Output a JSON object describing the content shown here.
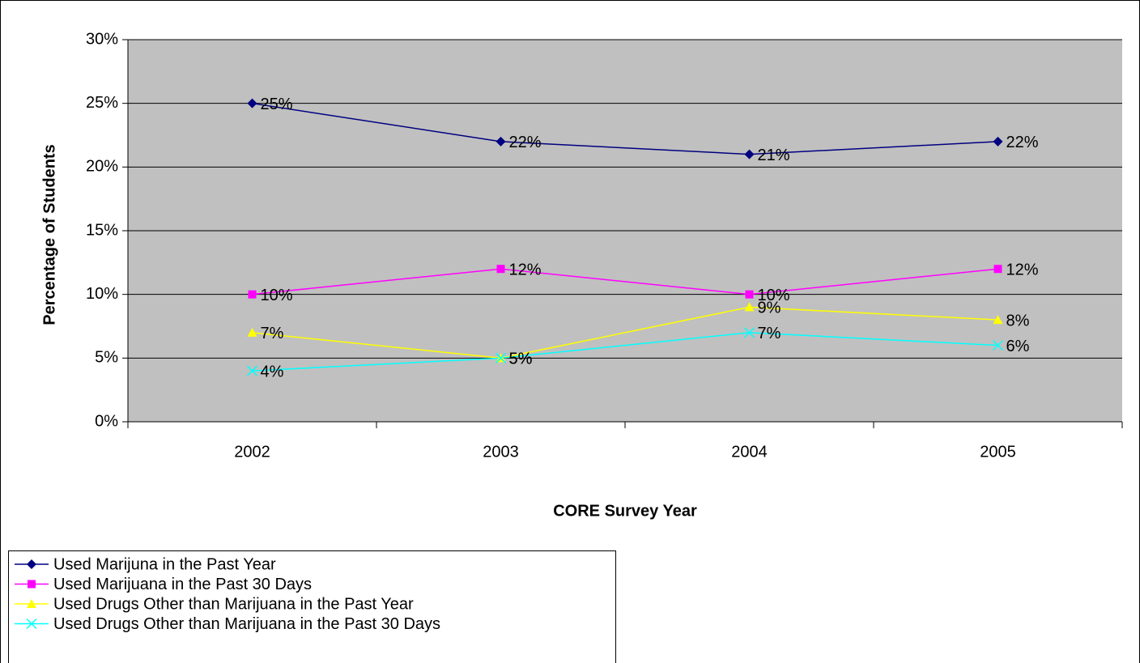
{
  "chart_data": {
    "type": "line",
    "xlabel": "CORE Survey Year",
    "ylabel": "Percentage of Students",
    "categories": [
      "2002",
      "2003",
      "2004",
      "2005"
    ],
    "ylim": [
      0,
      30
    ],
    "yticks": [
      {
        "value": 0,
        "label": "0%"
      },
      {
        "value": 5,
        "label": "5%"
      },
      {
        "value": 10,
        "label": "10%"
      },
      {
        "value": 15,
        "label": "15%"
      },
      {
        "value": 20,
        "label": "20%"
      },
      {
        "value": 25,
        "label": "25%"
      },
      {
        "value": 30,
        "label": "30%"
      }
    ],
    "grid": true,
    "series": [
      {
        "name": "Used Marijuna in the Past Year",
        "color": "#000080",
        "marker": "diamond",
        "values": [
          25,
          22,
          21,
          22
        ],
        "value_labels": [
          "25%",
          "22%",
          "21%",
          "22%"
        ]
      },
      {
        "name": "Used Marijuana in the Past 30 Days",
        "color": "#ff00ff",
        "marker": "square",
        "values": [
          10,
          12,
          10,
          12
        ],
        "value_labels": [
          "10%",
          "12%",
          "10%",
          "12%"
        ]
      },
      {
        "name": "Used Drugs Other than Marijuana in the Past Year",
        "color": "#ffff00",
        "marker": "triangle",
        "values": [
          7,
          5,
          9,
          8
        ],
        "value_labels": [
          "7%",
          "5%",
          "9%",
          "8%"
        ]
      },
      {
        "name": "Used Drugs Other than Marijuana in the Past 30 Days",
        "color": "#00ffff",
        "marker": "x",
        "values": [
          4,
          5,
          7,
          6
        ],
        "value_labels": [
          "4%",
          "5%",
          "7%",
          "6%"
        ]
      }
    ]
  }
}
